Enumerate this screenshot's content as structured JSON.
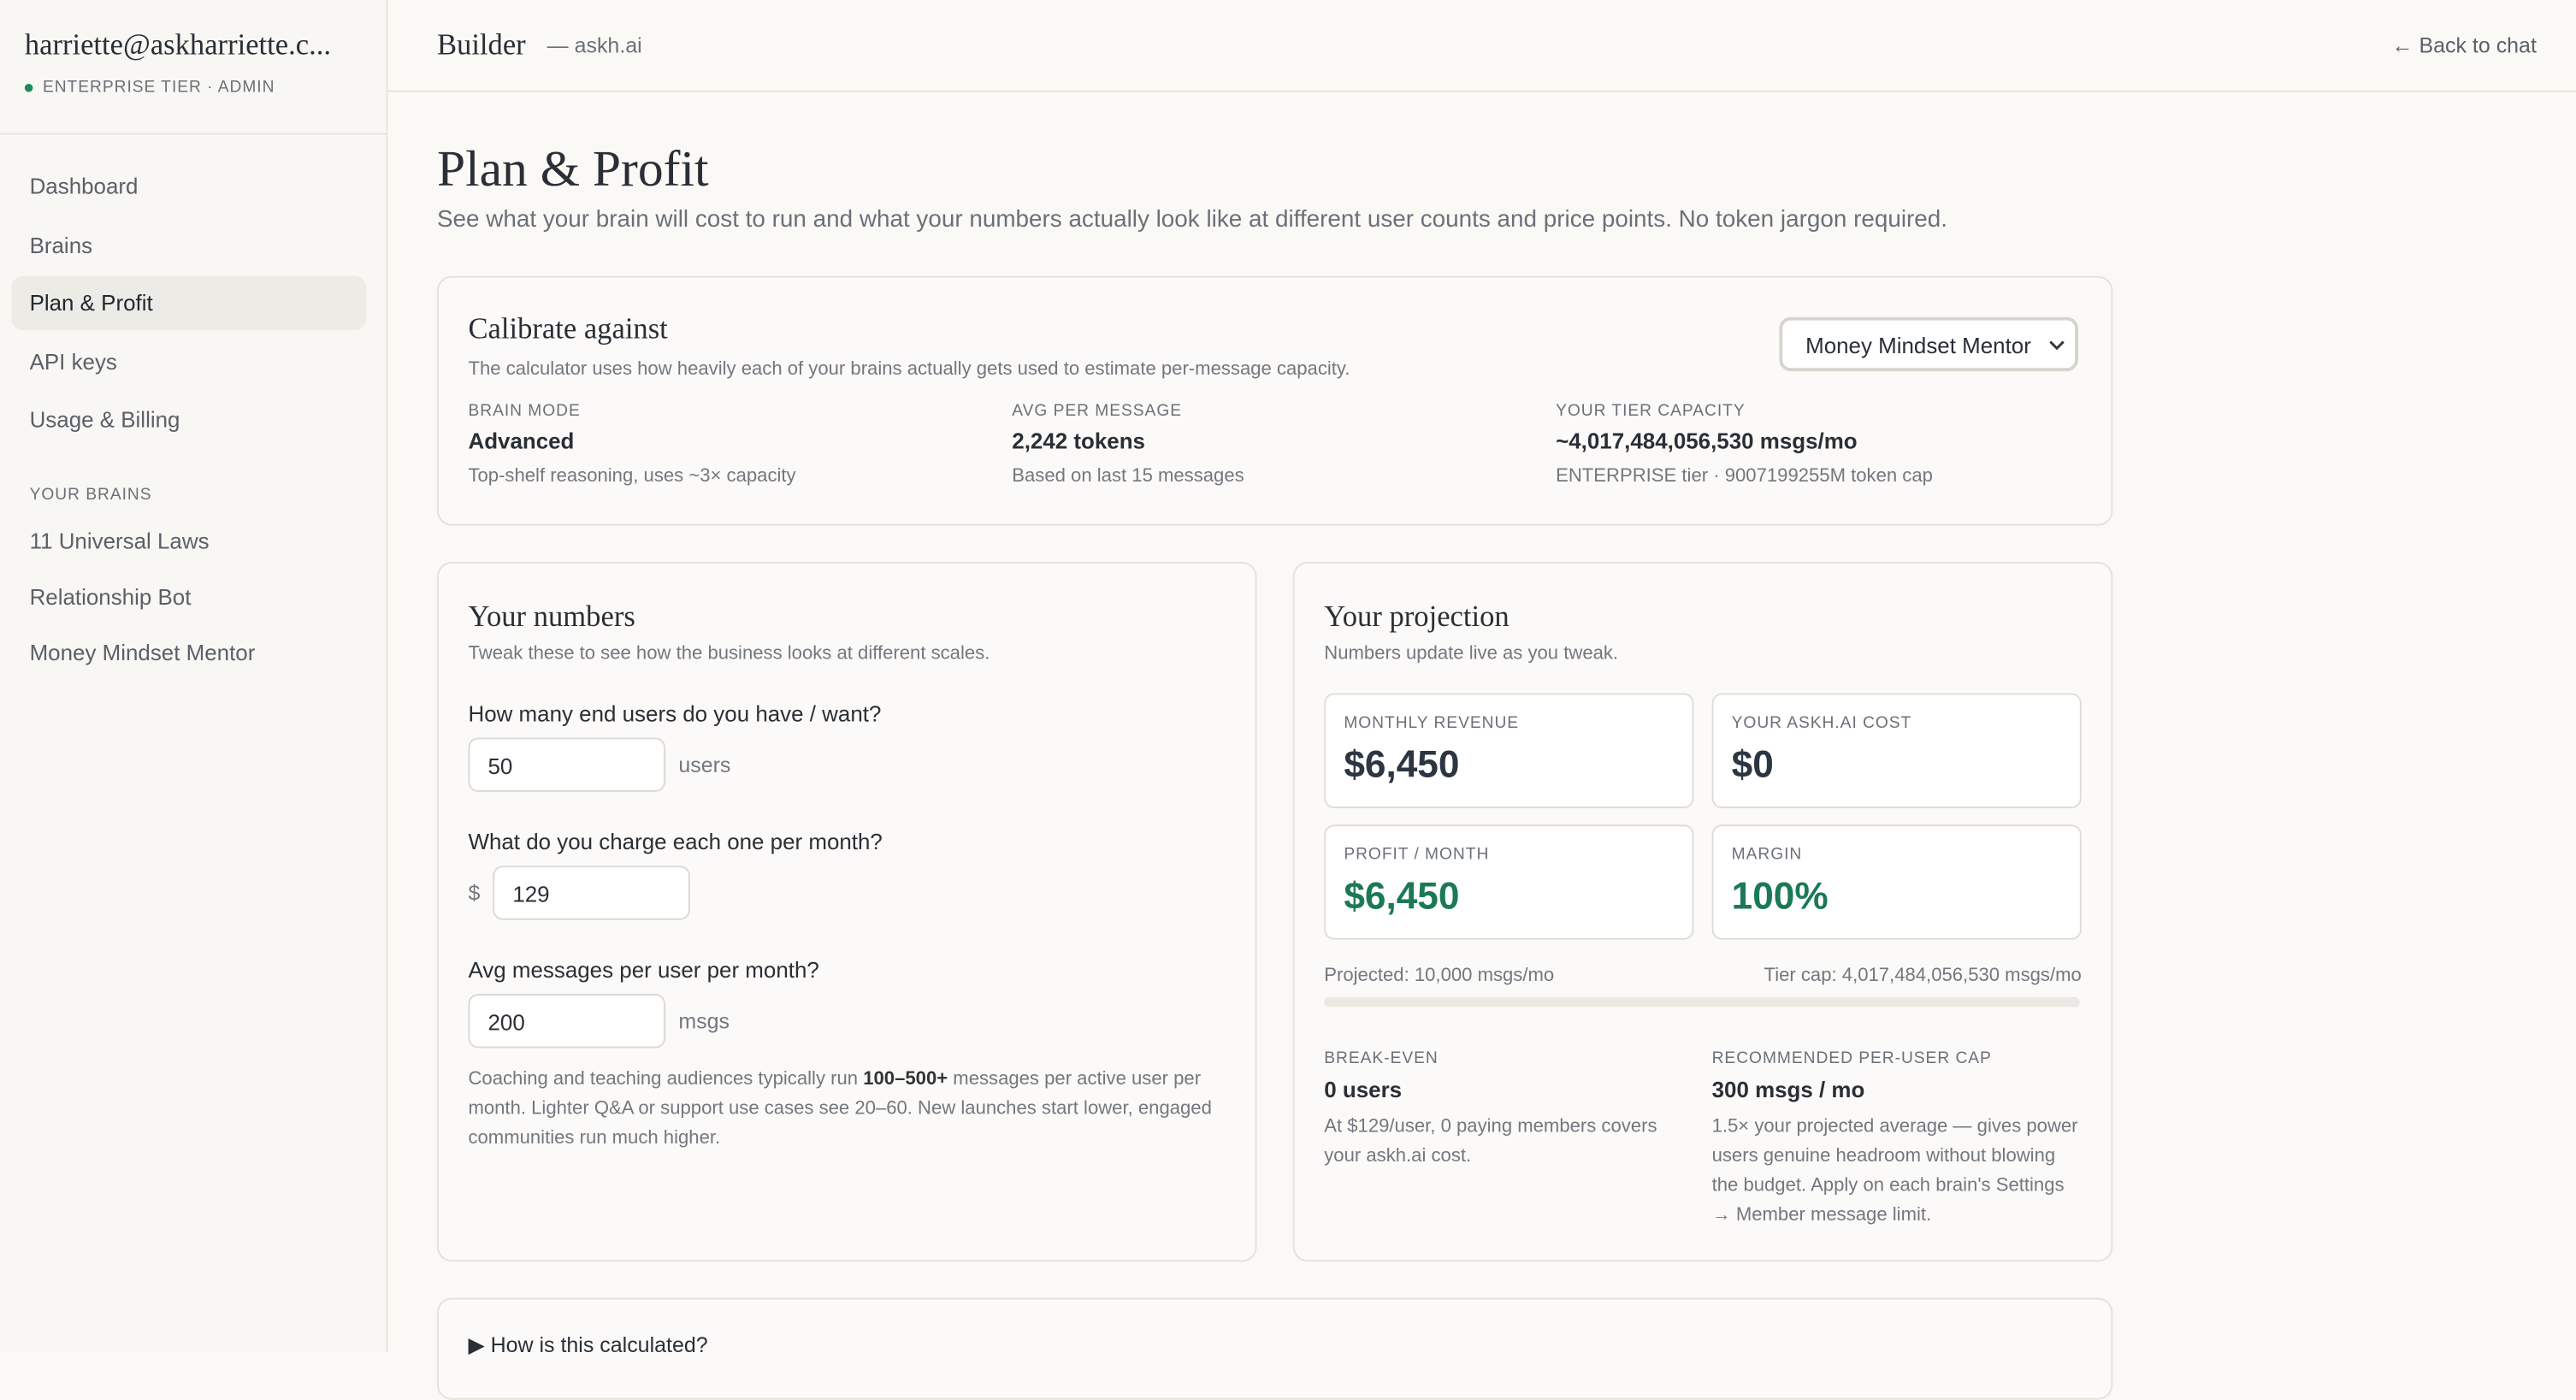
{
  "sidebar": {
    "user": "harriette@askharriette.c...",
    "tier": "ENTERPRISE TIER · ADMIN",
    "nav": [
      "Dashboard",
      "Brains",
      "Plan & Profit",
      "API keys",
      "Usage & Billing"
    ],
    "section": "YOUR BRAINS",
    "brains": [
      "11 Universal Laws",
      "Relationship Bot",
      "Money Mindset Mentor"
    ]
  },
  "header": {
    "title": "Builder",
    "subtitle": "— askh.ai",
    "back": "← Back to chat"
  },
  "page": {
    "title": "Plan & Profit",
    "description": "See what your brain will cost to run and what your numbers actually look like at different user counts and price points. No token jargon required."
  },
  "calibrate": {
    "title": "Calibrate against",
    "description": "The calculator uses how heavily each of your brains actually gets used to estimate per-message capacity.",
    "select": "Money Mindset Mentor",
    "stats": [
      {
        "label": "BRAIN MODE",
        "value": "Advanced",
        "note": "Top-shelf reasoning, uses ~3× capacity"
      },
      {
        "label": "AVG PER MESSAGE",
        "value": "2,242 tokens",
        "note": "Based on last 15 messages"
      },
      {
        "label": "YOUR TIER CAPACITY",
        "value": "~4,017,484,056,530 msgs/mo",
        "note": "ENTERPRISE tier · 9007199255M token cap"
      }
    ]
  },
  "numbers": {
    "title": "Your numbers",
    "subtitle": "Tweak these to see how the business looks at different scales.",
    "fields": [
      {
        "label": "How many end users do you have / want?",
        "value": "50",
        "suffix": "users"
      },
      {
        "label": "What do you charge each one per month?",
        "prefix": "$",
        "value": "129"
      },
      {
        "label": "Avg messages per user per month?",
        "value": "200",
        "suffix": "msgs"
      }
    ],
    "help": [
      "Coaching and teaching audiences typically run ",
      "100–500+",
      " messages per active user per month. Lighter Q&A or support use cases see 20–60. New launches start lower, engaged communities run much higher."
    ]
  },
  "projection": {
    "title": "Your projection",
    "subtitle": "Numbers update live as you tweak.",
    "cards": [
      {
        "label": "MONTHLY REVENUE",
        "value": "$6,450"
      },
      {
        "label": "YOUR ASKH.AI COST",
        "value": "$0"
      },
      {
        "label": "PROFIT / MONTH",
        "value": "$6,450"
      },
      {
        "label": "MARGIN",
        "value": "100%"
      }
    ],
    "projected": "Projected: 10,000 msgs/mo",
    "cap": "Tier cap: 4,017,484,056,530 msgs/mo",
    "breakeven": {
      "label": "BREAK-EVEN",
      "value": "0 users",
      "note": "At $129/user, 0 paying members covers your askh.ai cost."
    },
    "recommended": {
      "label": "RECOMMENDED PER-USER CAP",
      "value": "300 msgs / mo",
      "note": "1.5× your projected average — gives power users genuine headroom without blowing the budget. Apply on each brain's Settings → Member message limit."
    }
  },
  "details": {
    "summary": "How is this calculated?"
  }
}
